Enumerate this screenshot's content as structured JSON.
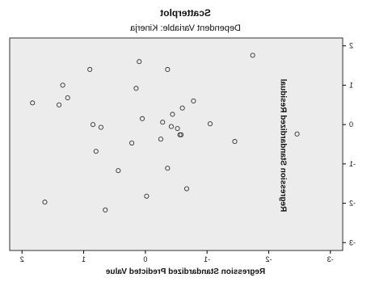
{
  "chart_data": {
    "type": "scatter",
    "title": "Scatterplot",
    "subtitle": "Dependent Variable: Kinerja",
    "xlabel": "Regression Standardized Predicted Value",
    "ylabel": "Regression Standardized Residual",
    "xlim": [
      2.2,
      -3.2
    ],
    "ylim": [
      -3.2,
      2.2
    ],
    "x_ticks": [
      2,
      1,
      0,
      -1,
      -2,
      -3
    ],
    "y_ticks": [
      2,
      1,
      0,
      -1,
      -2,
      -3
    ],
    "x_tick_labels": [
      "2",
      "1",
      "0",
      "-1",
      "-2",
      "-3"
    ],
    "y_tick_labels": [
      "2",
      "1",
      "0",
      "-1",
      "-2",
      "-3"
    ],
    "grid": false,
    "colors": {
      "plot_bg": "#ececec",
      "point": "#333333",
      "axis": "#000000"
    },
    "points": [
      {
        "x": -1.74,
        "y": 1.76
      },
      {
        "x": 0.1,
        "y": 1.6
      },
      {
        "x": -0.36,
        "y": 1.4
      },
      {
        "x": 0.9,
        "y": 1.4
      },
      {
        "x": 1.34,
        "y": 1.0
      },
      {
        "x": 0.15,
        "y": 0.92
      },
      {
        "x": 1.26,
        "y": 0.68
      },
      {
        "x": 1.4,
        "y": 0.5
      },
      {
        "x": 1.83,
        "y": 0.55
      },
      {
        "x": -0.78,
        "y": 0.6
      },
      {
        "x": -0.6,
        "y": 0.42
      },
      {
        "x": -0.44,
        "y": 0.26
      },
      {
        "x": 0.05,
        "y": 0.15
      },
      {
        "x": -0.28,
        "y": 0.06
      },
      {
        "x": -1.05,
        "y": 0.02
      },
      {
        "x": 0.85,
        "y": 0.0
      },
      {
        "x": 0.72,
        "y": -0.07
      },
      {
        "x": -0.42,
        "y": -0.05
      },
      {
        "x": -0.52,
        "y": -0.1
      },
      {
        "x": -0.56,
        "y": -0.26
      },
      {
        "x": -0.58,
        "y": -0.26
      },
      {
        "x": -2.46,
        "y": -0.24
      },
      {
        "x": -1.45,
        "y": -0.43
      },
      {
        "x": 0.22,
        "y": -0.47
      },
      {
        "x": -0.25,
        "y": -0.37
      },
      {
        "x": 0.8,
        "y": -0.68
      },
      {
        "x": 0.44,
        "y": -1.17
      },
      {
        "x": -0.36,
        "y": -1.11
      },
      {
        "x": -0.67,
        "y": -1.63
      },
      {
        "x": -0.02,
        "y": -1.82
      },
      {
        "x": 1.63,
        "y": -1.97
      },
      {
        "x": 0.65,
        "y": -2.17
      }
    ]
  }
}
